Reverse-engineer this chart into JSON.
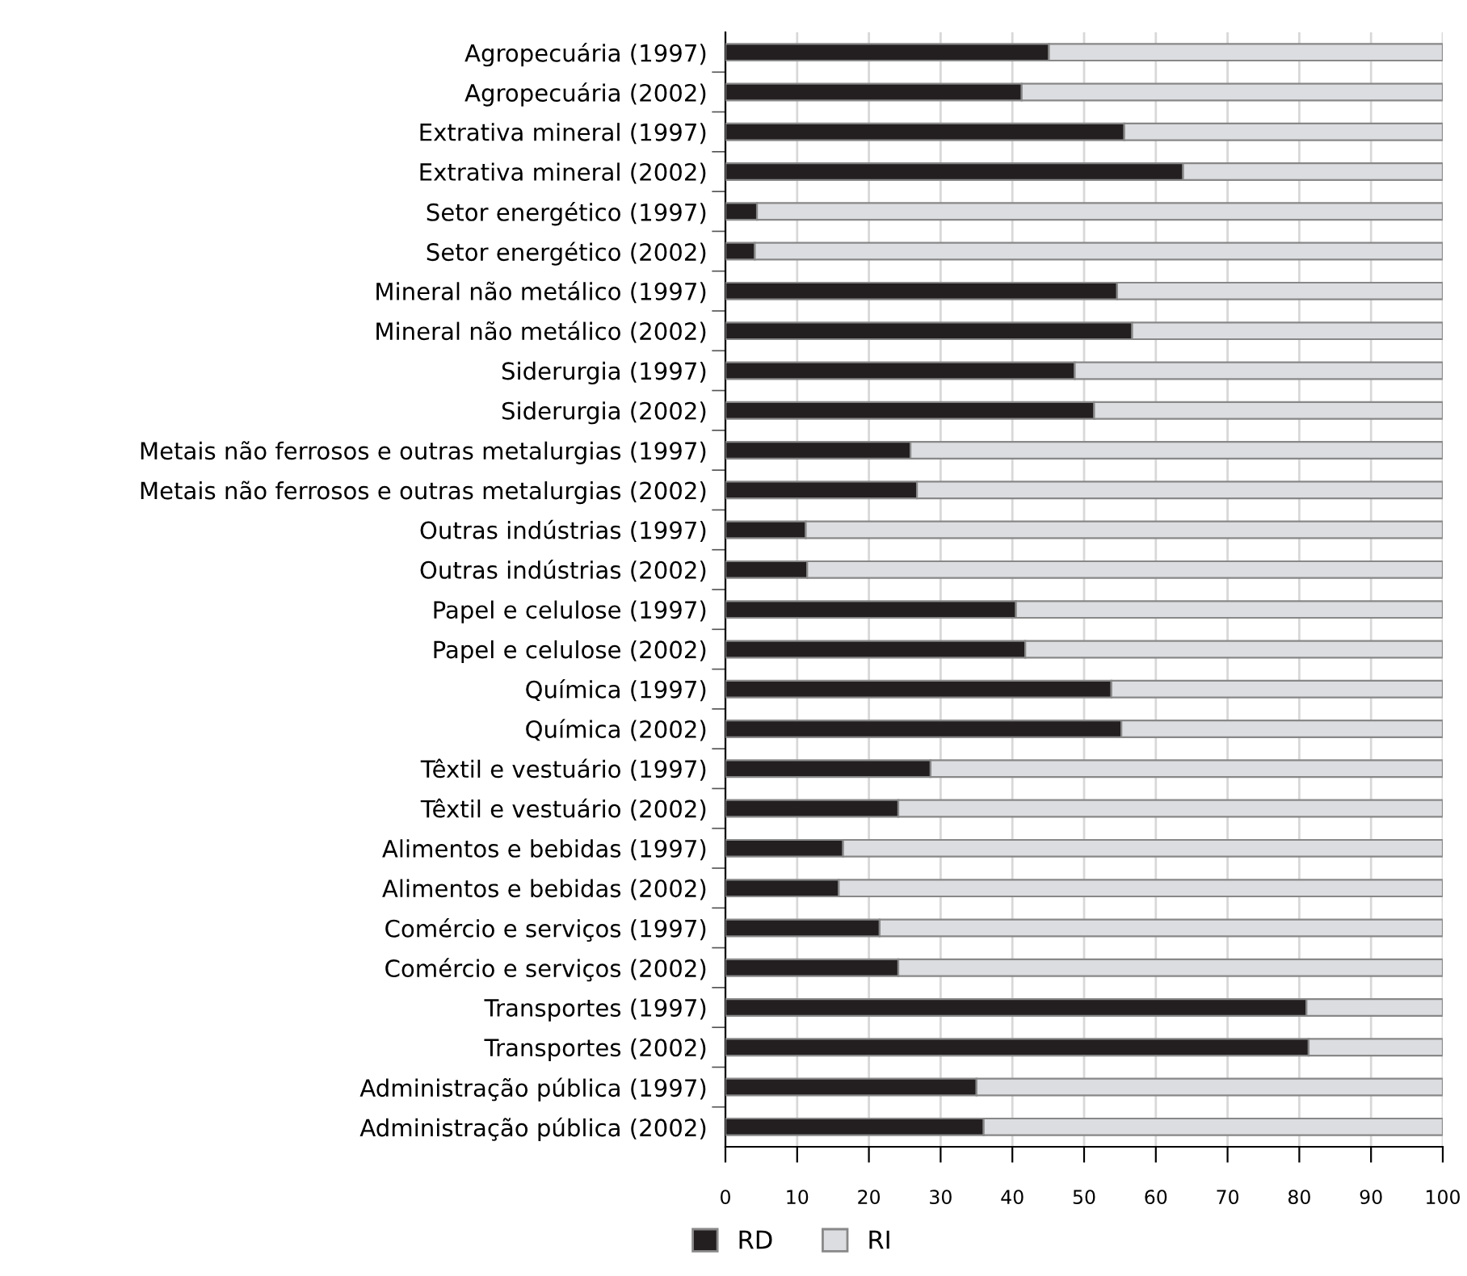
{
  "chart_data": {
    "type": "bar",
    "orientation": "horizontal",
    "stacked": true,
    "categories": [
      "Agropecuária (1997)",
      "Agropecuária (2002)",
      "Extrativa mineral (1997)",
      "Extrativa mineral (2002)",
      "Setor energético (1997)",
      "Setor energético (2002)",
      "Mineral não metálico (1997)",
      "Mineral não metálico (2002)",
      "Siderurgia (1997)",
      "Siderurgia (2002)",
      "Metais não ferrosos e outras metalurgias (1997)",
      "Metais não ferrosos e outras metalurgias (2002)",
      "Outras indústrias (1997)",
      "Outras indústrias (2002)",
      "Papel e celulose (1997)",
      "Papel e celulose (2002)",
      "Química (1997)",
      "Química (2002)",
      "Têxtil e vestuário (1997)",
      "Têxtil e vestuário (2002)",
      "Alimentos e bebidas (1997)",
      "Alimentos e bebidas (2002)",
      "Comércio e serviços (1997)",
      "Comércio e serviços (2002)",
      "Transportes (1997)",
      "Transportes (2002)",
      "Administração pública (1997)",
      "Administração pública (2002)"
    ],
    "series": [
      {
        "name": "RD",
        "color": "#231f20",
        "values": [
          45.1,
          41.3,
          55.6,
          63.8,
          4.4,
          4.1,
          54.6,
          56.7,
          48.7,
          51.4,
          25.8,
          26.7,
          11.2,
          11.4,
          40.5,
          41.8,
          53.8,
          55.2,
          28.6,
          24.1,
          16.4,
          15.8,
          21.5,
          24.1,
          81.0,
          81.3,
          35.0,
          36.0
        ]
      },
      {
        "name": "RI",
        "color": "#dcdde0",
        "values": [
          54.9,
          58.7,
          44.4,
          36.2,
          95.6,
          95.9,
          45.4,
          43.3,
          51.3,
          48.6,
          74.2,
          73.3,
          88.8,
          88.6,
          59.5,
          58.2,
          46.2,
          44.8,
          71.4,
          75.9,
          83.6,
          84.2,
          78.5,
          75.9,
          19.0,
          18.7,
          65.0,
          64.0
        ]
      }
    ],
    "xlim": [
      0,
      100
    ],
    "xticks": [
      0,
      10,
      20,
      30,
      40,
      50,
      60,
      70,
      80,
      90,
      100
    ],
    "grid": "x",
    "legend": "bottom"
  }
}
